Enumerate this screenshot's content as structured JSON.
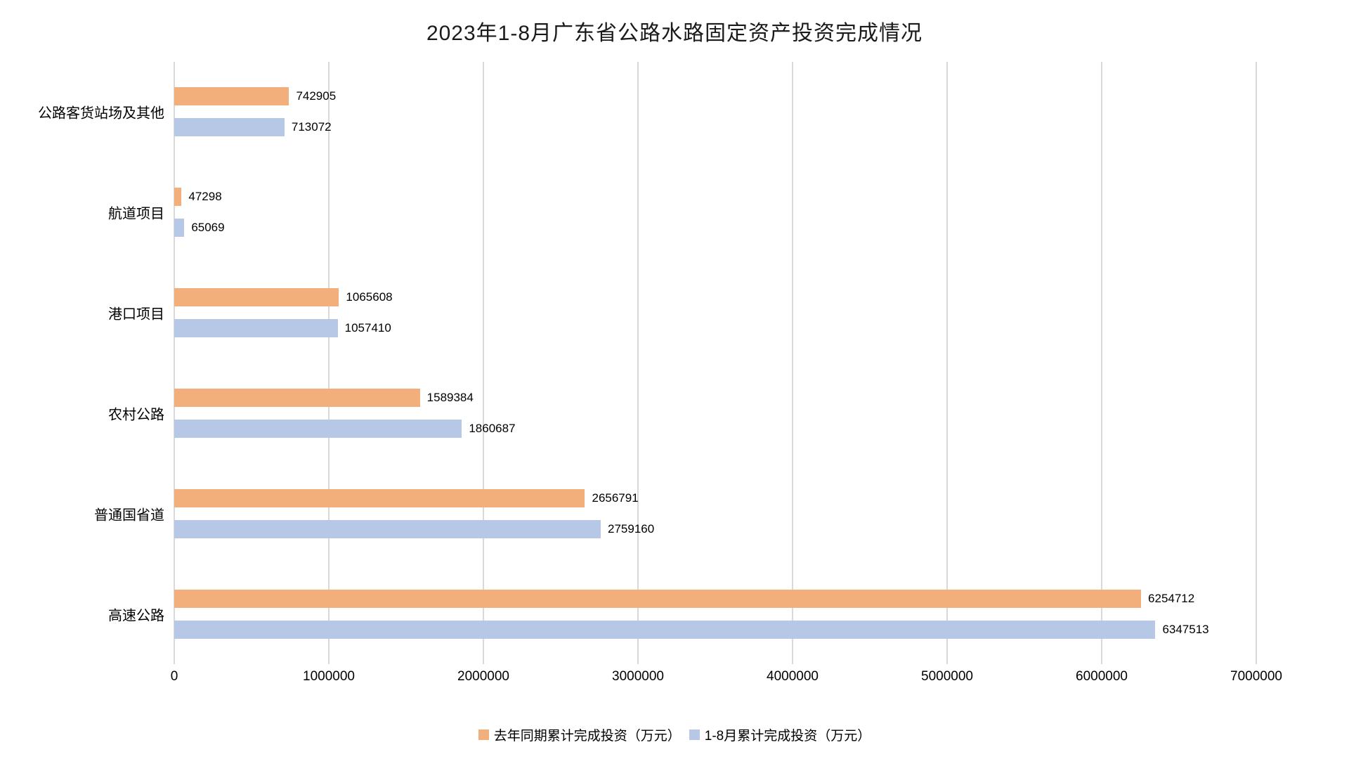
{
  "chart_data": {
    "type": "bar",
    "orientation": "horizontal",
    "title": "2023年1-8月广东省公路水路固定资产投资完成情况",
    "categories": [
      "公路客货站场及其他",
      "航道项目",
      "港口项目",
      "农村公路",
      "普通国省道",
      "高速公路"
    ],
    "series": [
      {
        "name": "去年同期累计完成投资（万元）",
        "color": "#F2AE7B",
        "values": [
          742905,
          47298,
          1065608,
          1589384,
          2656791,
          6254712
        ]
      },
      {
        "name": "1-8月累计完成投资（万元）",
        "color": "#B6C8E6",
        "values": [
          713072,
          65069,
          1057410,
          1860687,
          2759160,
          6347513
        ]
      }
    ],
    "xlim": [
      0,
      7000000
    ],
    "x_ticks": [
      0,
      1000000,
      2000000,
      3000000,
      4000000,
      5000000,
      6000000,
      7000000
    ],
    "grid": true,
    "gridline_color": "#D9D9D9",
    "value_labels": true,
    "legend_position": "bottom"
  }
}
